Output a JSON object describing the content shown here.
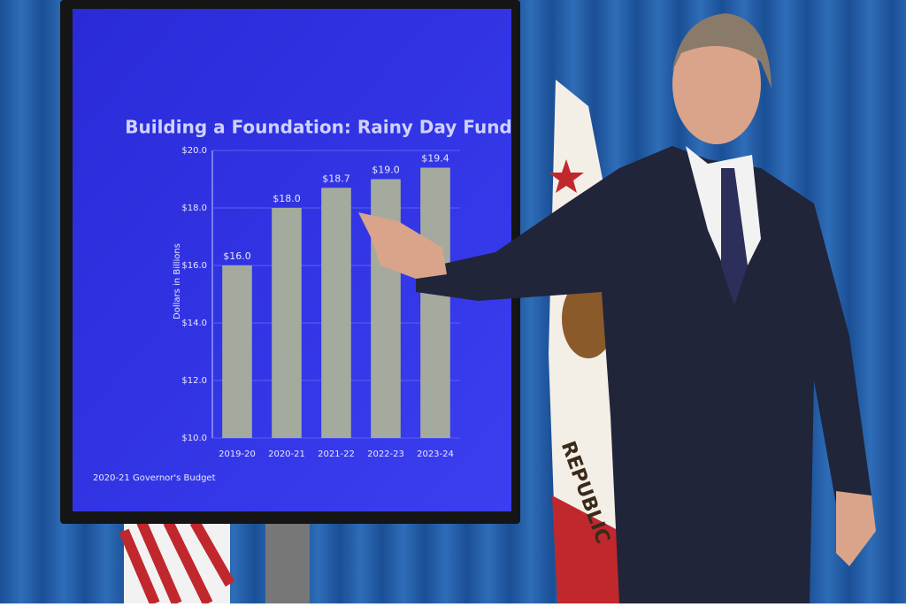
{
  "chart_data": {
    "type": "bar",
    "title": "Building a Foundation: Rainy Day Fund",
    "y_label": "Dollars in Billions",
    "footnote": "2020-21 Governor's Budget",
    "categories": [
      "2019-20",
      "2020-21",
      "2021-22",
      "2022-23",
      "2023-24"
    ],
    "values": [
      16.0,
      18.0,
      18.7,
      19.0,
      19.4
    ],
    "value_labels": [
      "$16.0",
      "$18.0",
      "$18.7",
      "$19.0",
      "$19.4"
    ],
    "color": "#a4ab9e",
    "ylim": [
      10,
      20
    ],
    "yticks": [
      {
        "value": 10,
        "label": "$10.0"
      },
      {
        "value": 12,
        "label": "$12.0"
      },
      {
        "value": 14,
        "label": "$14.0"
      },
      {
        "value": 16,
        "label": "$16.0"
      },
      {
        "value": 18,
        "label": "$18.0"
      },
      {
        "value": 20,
        "label": "$20.0"
      }
    ],
    "grid": true
  },
  "scene": {
    "flag_text": "REPUBLIC"
  }
}
